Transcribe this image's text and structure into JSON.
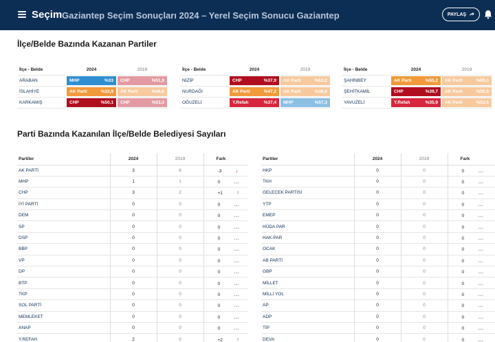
{
  "header": {
    "brand": "Seçim",
    "title": "Gaziantep Seçim Sonuçları 2024 – Yerel Seçim Sonucu Gaziantep",
    "share_label": "PAYLAŞ"
  },
  "section1": {
    "title": "İlçe/Belde Bazında Kazanan Partiler"
  },
  "section2": {
    "title": "Parti Bazında Kazanılan İlçe/Belde Belediyesi Sayıları"
  },
  "colors": {
    "MHP": "#2f8fd0",
    "CHP": "#d23436",
    "AKP": "#f2993a",
    "YRP": "#d7263d",
    "CHP_2019": "#e39aa2",
    "AKP_2019": "#f7c99d",
    "MHP_2019": "#8bbfe3",
    "CHP_dark": "#b00d1e"
  },
  "winners": {
    "head": {
      "district": "İlçe - Belde",
      "y2024": "2024",
      "y2019": "2019"
    },
    "columns": [
      [
        {
          "district": "ARABAN",
          "p24": "MHP",
          "v24": "%33",
          "c24": "#2f8fd0",
          "p19": "CHP",
          "v19": "%51,9",
          "c19": "#e39aa2"
        },
        {
          "district": "İSLAHİYE",
          "p24": "AK Parti",
          "v24": "%33,9",
          "c24": "#f2993a",
          "p19": "AK Parti",
          "v19": "%48,6",
          "c19": "#f7c99d"
        },
        {
          "district": "KARKAMIŞ",
          "p24": "CHP",
          "v24": "%50,1",
          "c24": "#b00d1e",
          "p19": "CHP",
          "v19": "%53,3",
          "c19": "#e39aa2"
        }
      ],
      [
        {
          "district": "NİZİP",
          "p24": "CHP",
          "v24": "%37,9",
          "c24": "#b00d1e",
          "p19": "AK Parti",
          "v19": "%53,2",
          "c19": "#f7c99d"
        },
        {
          "district": "NURDAĞI",
          "p24": "AK Parti",
          "v24": "%47,2",
          "c24": "#f2993a",
          "p19": "AK Parti",
          "v19": "%38,6",
          "c19": "#f7c99d"
        },
        {
          "district": "OĞUZELİ",
          "p24": "Y.Refah",
          "v24": "%37,4",
          "c24": "#d7263d",
          "p19": "MHP",
          "v19": "%57,3",
          "c19": "#8bbfe3"
        }
      ],
      [
        {
          "district": "ŞAHİNBEY",
          "p24": "AK Parti",
          "v24": "%55,2",
          "c24": "#f2993a",
          "p19": "AK Parti",
          "v19": "%63,3",
          "c19": "#f7c99d"
        },
        {
          "district": "ŞEHİTKAMİL",
          "p24": "CHP",
          "v24": "%39,7",
          "c24": "#b00d1e",
          "p19": "AK Parti",
          "v19": "%55,5",
          "c19": "#f7c99d"
        },
        {
          "district": "YAVUZELİ",
          "p24": "Y.Refah",
          "v24": "%35,9",
          "c24": "#d7263d",
          "p19": "AK Parti",
          "v19": "%53,5",
          "c19": "#f7c99d"
        }
      ]
    ]
  },
  "parties": {
    "head": {
      "name": "Partiler",
      "y2024": "2024",
      "y2019": "2019",
      "diff": "Fark"
    },
    "left": [
      {
        "name": "AK PARTİ",
        "v24": "3",
        "v19": "6",
        "diff": "-3",
        "trend": "down"
      },
      {
        "name": "MHP",
        "v24": "1",
        "v19": "1",
        "diff": "0",
        "trend": "flat"
      },
      {
        "name": "CHP",
        "v24": "3",
        "v19": "2",
        "diff": "+1",
        "trend": "up"
      },
      {
        "name": "İYİ PARTİ",
        "v24": "0",
        "v19": "0",
        "diff": "0",
        "trend": "flat"
      },
      {
        "name": "DEM",
        "v24": "0",
        "v19": "0",
        "diff": "0",
        "trend": "flat"
      },
      {
        "name": "SP",
        "v24": "0",
        "v19": "0",
        "diff": "0",
        "trend": "flat"
      },
      {
        "name": "DSP",
        "v24": "0",
        "v19": "0",
        "diff": "0",
        "trend": "flat"
      },
      {
        "name": "BBP",
        "v24": "0",
        "v19": "0",
        "diff": "0",
        "trend": "flat"
      },
      {
        "name": "VP",
        "v24": "0",
        "v19": "0",
        "diff": "0",
        "trend": "flat"
      },
      {
        "name": "DP",
        "v24": "0",
        "v19": "0",
        "diff": "0",
        "trend": "flat"
      },
      {
        "name": "BTP",
        "v24": "0",
        "v19": "0",
        "diff": "0",
        "trend": "flat"
      },
      {
        "name": "TKP",
        "v24": "0",
        "v19": "0",
        "diff": "0",
        "trend": "flat"
      },
      {
        "name": "SOL PARTİ",
        "v24": "0",
        "v19": "0",
        "diff": "0",
        "trend": "flat"
      },
      {
        "name": "MEMLEKET",
        "v24": "0",
        "v19": "0",
        "diff": "0",
        "trend": "flat"
      },
      {
        "name": "ANAP",
        "v24": "0",
        "v19": "0",
        "diff": "0",
        "trend": "flat"
      },
      {
        "name": "Y.REFAH",
        "v24": "2",
        "v19": "0",
        "diff": "+2",
        "trend": "up"
      }
    ],
    "right": [
      {
        "name": "HKP",
        "v24": "0",
        "v19": "0",
        "diff": "0",
        "trend": "flat"
      },
      {
        "name": "TKH",
        "v24": "0",
        "v19": "0",
        "diff": "0",
        "trend": "flat"
      },
      {
        "name": "GELECEK PARTİSİ",
        "v24": "0",
        "v19": "0",
        "diff": "0",
        "trend": "flat"
      },
      {
        "name": "YTP",
        "v24": "0",
        "v19": "0",
        "diff": "0",
        "trend": "flat"
      },
      {
        "name": "EMEP",
        "v24": "0",
        "v19": "0",
        "diff": "0",
        "trend": "flat"
      },
      {
        "name": "HÜDA PAR",
        "v24": "0",
        "v19": "0",
        "diff": "0",
        "trend": "flat"
      },
      {
        "name": "HAK-PAR",
        "v24": "0",
        "v19": "0",
        "diff": "0",
        "trend": "flat"
      },
      {
        "name": "OCAK",
        "v24": "0",
        "v19": "0",
        "diff": "0",
        "trend": "flat"
      },
      {
        "name": "AB PARTİ",
        "v24": "0",
        "v19": "0",
        "diff": "0",
        "trend": "flat"
      },
      {
        "name": "GBP",
        "v24": "0",
        "v19": "0",
        "diff": "0",
        "trend": "flat"
      },
      {
        "name": "MİLLET",
        "v24": "0",
        "v19": "0",
        "diff": "0",
        "trend": "flat"
      },
      {
        "name": "MİLLİ YOL",
        "v24": "0",
        "v19": "0",
        "diff": "0",
        "trend": "flat"
      },
      {
        "name": "AP",
        "v24": "0",
        "v19": "0",
        "diff": "0",
        "trend": "flat"
      },
      {
        "name": "ADP",
        "v24": "0",
        "v19": "0",
        "diff": "0",
        "trend": "flat"
      },
      {
        "name": "TİP",
        "v24": "0",
        "v19": "0",
        "diff": "0",
        "trend": "flat"
      },
      {
        "name": "DEVA",
        "v24": "0",
        "v19": "0",
        "diff": "0",
        "trend": "flat"
      }
    ]
  }
}
